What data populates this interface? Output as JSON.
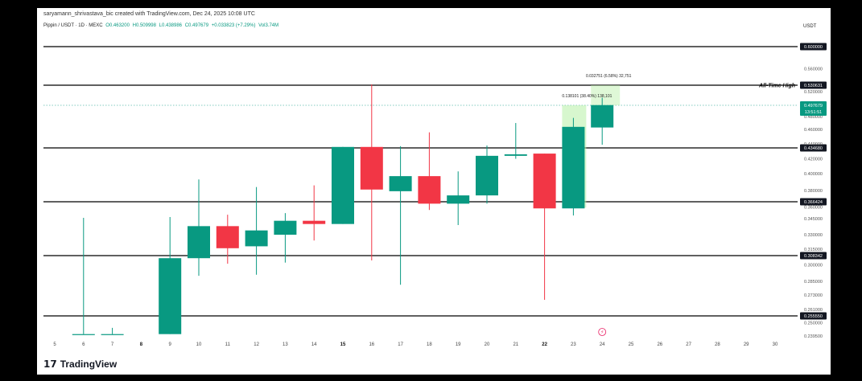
{
  "header": {
    "credit": "saryamann_shrivastava_bic created with TradingView.com, Dec 24, 2025 10:08 UTC"
  },
  "symbol": {
    "name": "Pippin / USDT · 1D · MEXC",
    "open": "O0.463200",
    "high": "H0.509998",
    "low": "L0.438986",
    "close": "C0.497679",
    "change": "+0.033823 (+7.29%)",
    "volume": "Vol3.74M"
  },
  "currency": "USDT",
  "price_label": "0.497679",
  "countdown": "13:51:51",
  "ath_label": "All-Time High",
  "logo": "TradingView",
  "colors": {
    "up": "#089981",
    "down": "#f23645",
    "projection": "#b7f0a6",
    "level": "#000000"
  },
  "chart_data": {
    "type": "candlestick",
    "x_ticks": [
      "5",
      "6",
      "7",
      "8",
      "9",
      "10",
      "11",
      "12",
      "13",
      "14",
      "15",
      "16",
      "17",
      "18",
      "19",
      "20",
      "21",
      "22",
      "23",
      "24",
      "25",
      "26",
      "27",
      "28",
      "29",
      "30"
    ],
    "bold_ticks": [
      "8",
      "15",
      "22"
    ],
    "price_ticks": [
      "0.560000",
      "0.520000",
      "0.480000",
      "0.460000",
      "0.440000",
      "0.420000",
      "0.400000",
      "0.380000",
      "0.360000",
      "0.345000",
      "0.330000",
      "0.315000",
      "0.300000",
      "0.285000",
      "0.273000",
      "0.261000",
      "0.250000",
      "0.239500"
    ],
    "levels": [
      "0.600000",
      "0.530631",
      "0.434680",
      "0.366424",
      "0.308342",
      "0.255550"
    ],
    "candles": [
      {
        "x": "6",
        "open": 0.241,
        "high": 0.346,
        "low": 0.241,
        "close": 0.241
      },
      {
        "x": "7",
        "open": 0.241,
        "high": 0.246,
        "low": 0.241,
        "close": 0.241
      },
      {
        "x": "9",
        "open": 0.241,
        "high": 0.347,
        "low": 0.241,
        "close": 0.306
      },
      {
        "x": "10",
        "open": 0.306,
        "high": 0.393,
        "low": 0.29,
        "close": 0.338
      },
      {
        "x": "11",
        "open": 0.338,
        "high": 0.35,
        "low": 0.301,
        "close": 0.316
      },
      {
        "x": "12",
        "open": 0.318,
        "high": 0.384,
        "low": 0.291,
        "close": 0.334
      },
      {
        "x": "13",
        "open": 0.33,
        "high": 0.352,
        "low": 0.302,
        "close": 0.343
      },
      {
        "x": "14",
        "open": 0.343,
        "high": 0.386,
        "low": 0.324,
        "close": 0.34
      },
      {
        "x": "15",
        "open": 0.34,
        "high": 0.436,
        "low": 0.34,
        "close": 0.436
      },
      {
        "x": "16",
        "open": 0.436,
        "high": 0.532,
        "low": 0.304,
        "close": 0.381
      },
      {
        "x": "17",
        "open": 0.379,
        "high": 0.437,
        "low": 0.282,
        "close": 0.397
      },
      {
        "x": "18",
        "open": 0.397,
        "high": 0.456,
        "low": 0.356,
        "close": 0.364
      },
      {
        "x": "19",
        "open": 0.364,
        "high": 0.403,
        "low": 0.339,
        "close": 0.374
      },
      {
        "x": "20",
        "open": 0.374,
        "high": 0.438,
        "low": 0.364,
        "close": 0.424
      },
      {
        "x": "21",
        "open": 0.424,
        "high": 0.47,
        "low": 0.42,
        "close": 0.426
      },
      {
        "x": "22",
        "open": 0.427,
        "high": 0.427,
        "low": 0.269,
        "close": 0.358
      },
      {
        "x": "23",
        "open": 0.358,
        "high": 0.478,
        "low": 0.349,
        "close": 0.464
      },
      {
        "x": "24",
        "open": 0.463,
        "high": 0.51,
        "low": 0.439,
        "close": 0.498
      }
    ],
    "annotations": [
      {
        "text": "0.138101 (38.40%) 138,101"
      },
      {
        "text": "0.032751 (6.58%) 32,751"
      }
    ]
  }
}
